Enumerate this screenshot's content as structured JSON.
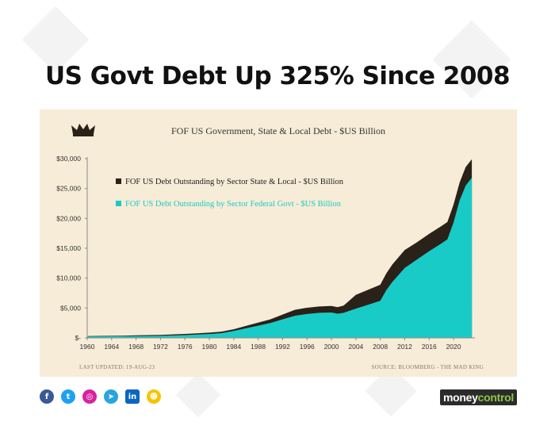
{
  "headline": "US Govt Debt Up 325% Since 2008",
  "colors": {
    "panel": "#f7ecd7",
    "state_local": "#2a2219",
    "federal": "#19cbc6",
    "axis_text": "#333333"
  },
  "footer": {
    "updated": "LAST UPDATED: 19-AUG-23",
    "source": "SOURCE: BLOOMBERG - THE MAD KING"
  },
  "social_icons": [
    "facebook-icon",
    "twitter-icon",
    "instagram-icon",
    "telegram-icon",
    "linkedin-icon",
    "snapchat-icon"
  ],
  "brand": {
    "part1": "money",
    "part2": "control"
  },
  "chart_data": {
    "type": "area",
    "stacked": true,
    "title": "FOF US Government, State & Local Debt - $US Billion",
    "xlabel": "",
    "ylabel": "",
    "xlim": [
      1960,
      2023.5
    ],
    "ylim": [
      0,
      30000
    ],
    "x_ticks": [
      "1960",
      "1964",
      "1968",
      "1972",
      "1976",
      "1980",
      "1984",
      "1988",
      "1992",
      "1996",
      "2000",
      "2004",
      "2008",
      "2012",
      "2016",
      "2020"
    ],
    "y_ticks": [
      "$-",
      "$5,000",
      "$10,000",
      "$15,000",
      "$20,000",
      "$25,000",
      "$30,000"
    ],
    "grid": false,
    "legend_position": "top-left",
    "x": [
      1960,
      1962,
      1964,
      1966,
      1968,
      1970,
      1972,
      1974,
      1976,
      1978,
      1980,
      1982,
      1984,
      1986,
      1988,
      1990,
      1992,
      1994,
      1996,
      1998,
      2000,
      2001,
      2002,
      2004,
      2006,
      2008,
      2009,
      2010,
      2012,
      2014,
      2016,
      2018,
      2019,
      2020,
      2021,
      2022,
      2023
    ],
    "series": [
      {
        "name": "FOF US Debt Outstanding by Sector Federal Govt - $US Billion",
        "values": [
          240,
          250,
          260,
          270,
          300,
          320,
          350,
          400,
          460,
          560,
          650,
          800,
          1150,
          1600,
          2050,
          2500,
          3100,
          3700,
          4000,
          4200,
          4250,
          4050,
          4200,
          4900,
          5550,
          6200,
          8000,
          9400,
          11700,
          13100,
          14500,
          15800,
          16500,
          19300,
          23000,
          25500,
          26800
        ]
      },
      {
        "name": "FOF US Debt Outstanding by Sector State & Local - $US Billion",
        "values": [
          70,
          80,
          90,
          100,
          120,
          140,
          160,
          180,
          200,
          210,
          220,
          250,
          300,
          400,
          500,
          600,
          800,
          1000,
          1050,
          1050,
          1100,
          1100,
          1200,
          2300,
          2500,
          2700,
          2800,
          2900,
          3000,
          2900,
          2900,
          2900,
          2900,
          3000,
          3000,
          3100,
          3100
        ]
      }
    ]
  }
}
